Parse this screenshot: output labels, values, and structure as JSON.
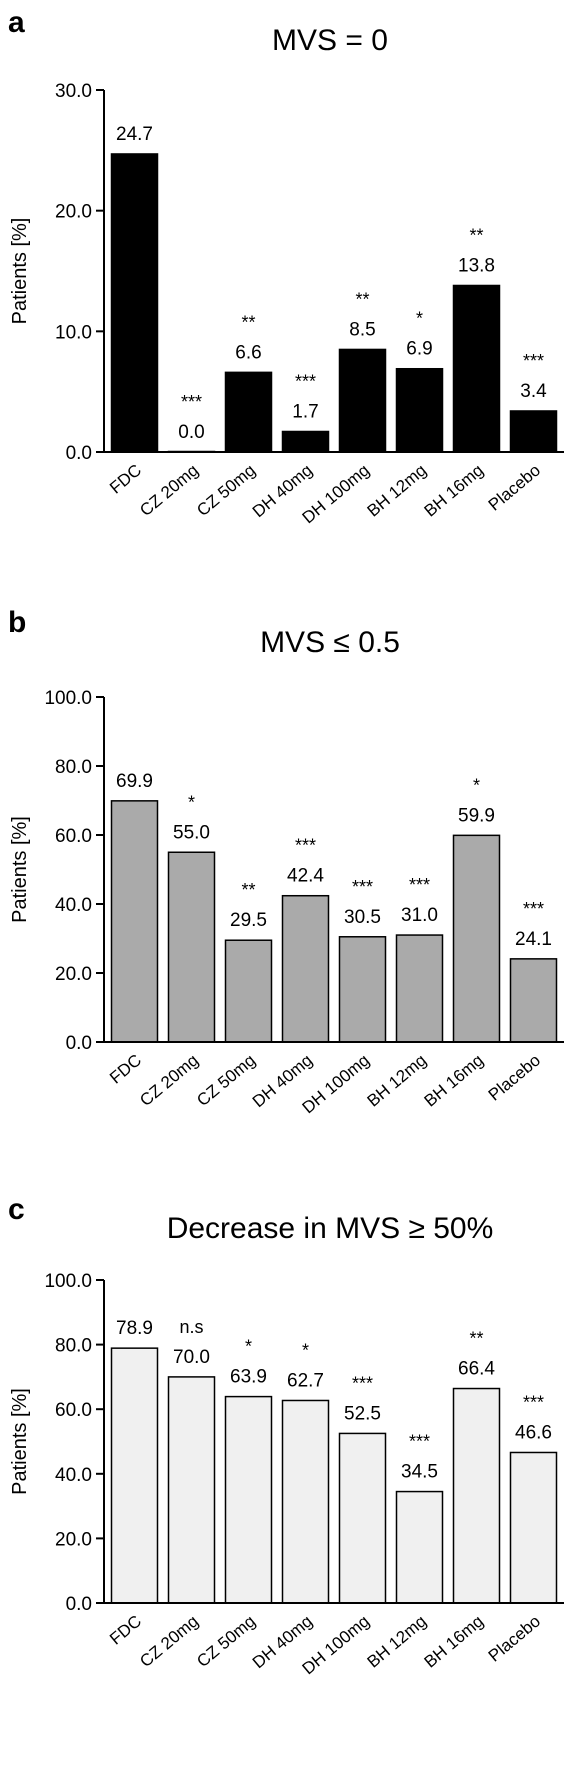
{
  "chart_data": [
    {
      "type": "bar",
      "panel": "a",
      "title": "MVS = 0",
      "ylabel": "Patients [%]",
      "ylim": [
        0,
        30
      ],
      "yticks": [
        "0.0",
        "10.0",
        "20.0",
        "30.0"
      ],
      "categories": [
        "FDC",
        "CZ 20mg",
        "CZ 50mg",
        "DH 40mg",
        "DH 100mg",
        "BH 12mg",
        "BH 16mg",
        "Placebo"
      ],
      "values": [
        24.7,
        0.0,
        6.6,
        1.7,
        8.5,
        6.9,
        13.8,
        3.4
      ],
      "value_labels": [
        "24.7",
        "0.0",
        "6.6",
        "1.7",
        "8.5",
        "6.9",
        "13.8",
        "3.4"
      ],
      "significance": [
        "",
        "***",
        "**",
        "***",
        "**",
        "*",
        "**",
        "***"
      ],
      "bar_color": "#000000",
      "grid": false
    },
    {
      "type": "bar",
      "panel": "b",
      "title": "MVS ≤ 0.5",
      "ylabel": "Patients [%]",
      "ylim": [
        0,
        100
      ],
      "yticks": [
        "0.0",
        "20.0",
        "40.0",
        "60.0",
        "80.0",
        "100.0"
      ],
      "categories": [
        "FDC",
        "CZ 20mg",
        "CZ 50mg",
        "DH 40mg",
        "DH 100mg",
        "BH 12mg",
        "BH 16mg",
        "Placebo"
      ],
      "values": [
        69.9,
        55.0,
        29.5,
        42.4,
        30.5,
        31.0,
        59.9,
        24.1
      ],
      "value_labels": [
        "69.9",
        "55.0",
        "29.5",
        "42.4",
        "30.5",
        "31.0",
        "59.9",
        "24.1"
      ],
      "significance": [
        "",
        "*",
        "**",
        "***",
        "***",
        "***",
        "*",
        "***"
      ],
      "bar_color": "#aaaaaa",
      "grid": false
    },
    {
      "type": "bar",
      "panel": "c",
      "title": "Decrease in MVS ≥ 50%",
      "ylabel": "Patients [%]",
      "ylim": [
        0,
        100
      ],
      "yticks": [
        "0.0",
        "20.0",
        "40.0",
        "60.0",
        "80.0",
        "100.0"
      ],
      "categories": [
        "FDC",
        "CZ 20mg",
        "CZ 50mg",
        "DH 40mg",
        "DH 100mg",
        "BH 12mg",
        "BH 16mg",
        "Placebo"
      ],
      "values": [
        78.9,
        70.0,
        63.9,
        62.7,
        52.5,
        34.5,
        66.4,
        46.6
      ],
      "value_labels": [
        "78.9",
        "70.0",
        "63.9",
        "62.7",
        "52.5",
        "34.5",
        "66.4",
        "46.6"
      ],
      "significance": [
        "",
        "n.s",
        "*",
        "*",
        "***",
        "***",
        "**",
        "***"
      ],
      "bar_color": "#f0f0f0",
      "grid": false
    }
  ]
}
